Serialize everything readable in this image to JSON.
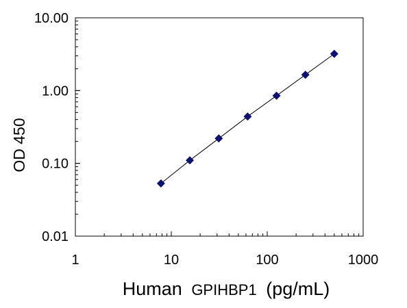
{
  "chart_data": {
    "type": "scatter",
    "xlabel_main": "Human",
    "xlabel_analyte": "GPIHBP1",
    "xlabel_unit": "(pg/mL)",
    "ylabel": "OD 450",
    "x_scale": "log",
    "y_scale": "log",
    "xlim": [
      1,
      1000
    ],
    "ylim": [
      0.01,
      10
    ],
    "x_ticks": [
      {
        "value": 1,
        "label": "1"
      },
      {
        "value": 10,
        "label": "10"
      },
      {
        "value": 100,
        "label": "100"
      },
      {
        "value": 1000,
        "label": "1000"
      }
    ],
    "y_ticks": [
      {
        "value": 0.01,
        "label": "0.01"
      },
      {
        "value": 0.1,
        "label": "0.10"
      },
      {
        "value": 1,
        "label": "1.00"
      },
      {
        "value": 10,
        "label": "10.00"
      }
    ],
    "grid": false,
    "series": [
      {
        "marker": "diamond",
        "color": "#0d1170",
        "line_color": "#000000",
        "points": [
          {
            "x": 7.8,
            "y": 0.053
          },
          {
            "x": 15.6,
            "y": 0.11
          },
          {
            "x": 31.25,
            "y": 0.22
          },
          {
            "x": 62.5,
            "y": 0.44
          },
          {
            "x": 125,
            "y": 0.85
          },
          {
            "x": 250,
            "y": 1.65
          },
          {
            "x": 500,
            "y": 3.2
          }
        ]
      }
    ]
  }
}
